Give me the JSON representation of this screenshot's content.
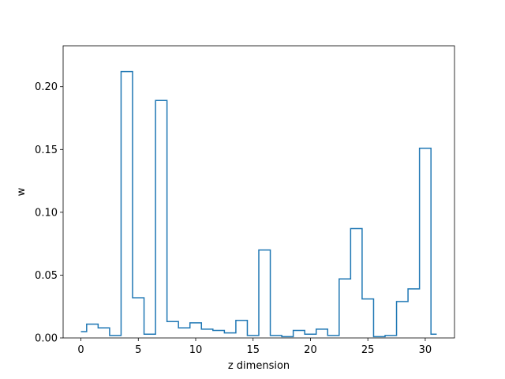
{
  "chart_data": {
    "type": "line",
    "drawstyle": "steps-mid",
    "xlabel": "z dimension",
    "ylabel": "w",
    "xlim": [
      -1.55,
      32.55
    ],
    "ylim": [
      0.0,
      0.2325
    ],
    "x_ticks": [
      0,
      5,
      10,
      15,
      20,
      25,
      30
    ],
    "x_tick_labels": [
      "0",
      "5",
      "10",
      "15",
      "20",
      "25",
      "30"
    ],
    "y_ticks": [
      0.0,
      0.05,
      0.1,
      0.15,
      0.2
    ],
    "y_tick_labels": [
      "0.00",
      "0.05",
      "0.10",
      "0.15",
      "0.20"
    ],
    "grid": false,
    "legend": "none",
    "color": "#1f77b4",
    "series": [
      {
        "x": [
          0,
          1,
          2,
          3,
          4,
          5,
          6,
          7,
          8,
          9,
          10,
          11,
          12,
          13,
          14,
          15,
          16,
          17,
          18,
          19,
          20,
          21,
          22,
          23,
          24,
          25,
          26,
          27,
          28,
          29,
          30,
          31
        ],
        "values": [
          0.005,
          0.011,
          0.008,
          0.002,
          0.212,
          0.032,
          0.003,
          0.189,
          0.013,
          0.008,
          0.012,
          0.007,
          0.006,
          0.004,
          0.014,
          0.002,
          0.07,
          0.002,
          0.001,
          0.006,
          0.003,
          0.007,
          0.002,
          0.047,
          0.087,
          0.031,
          0.001,
          0.002,
          0.029,
          0.039,
          0.151,
          0.003
        ]
      }
    ]
  }
}
